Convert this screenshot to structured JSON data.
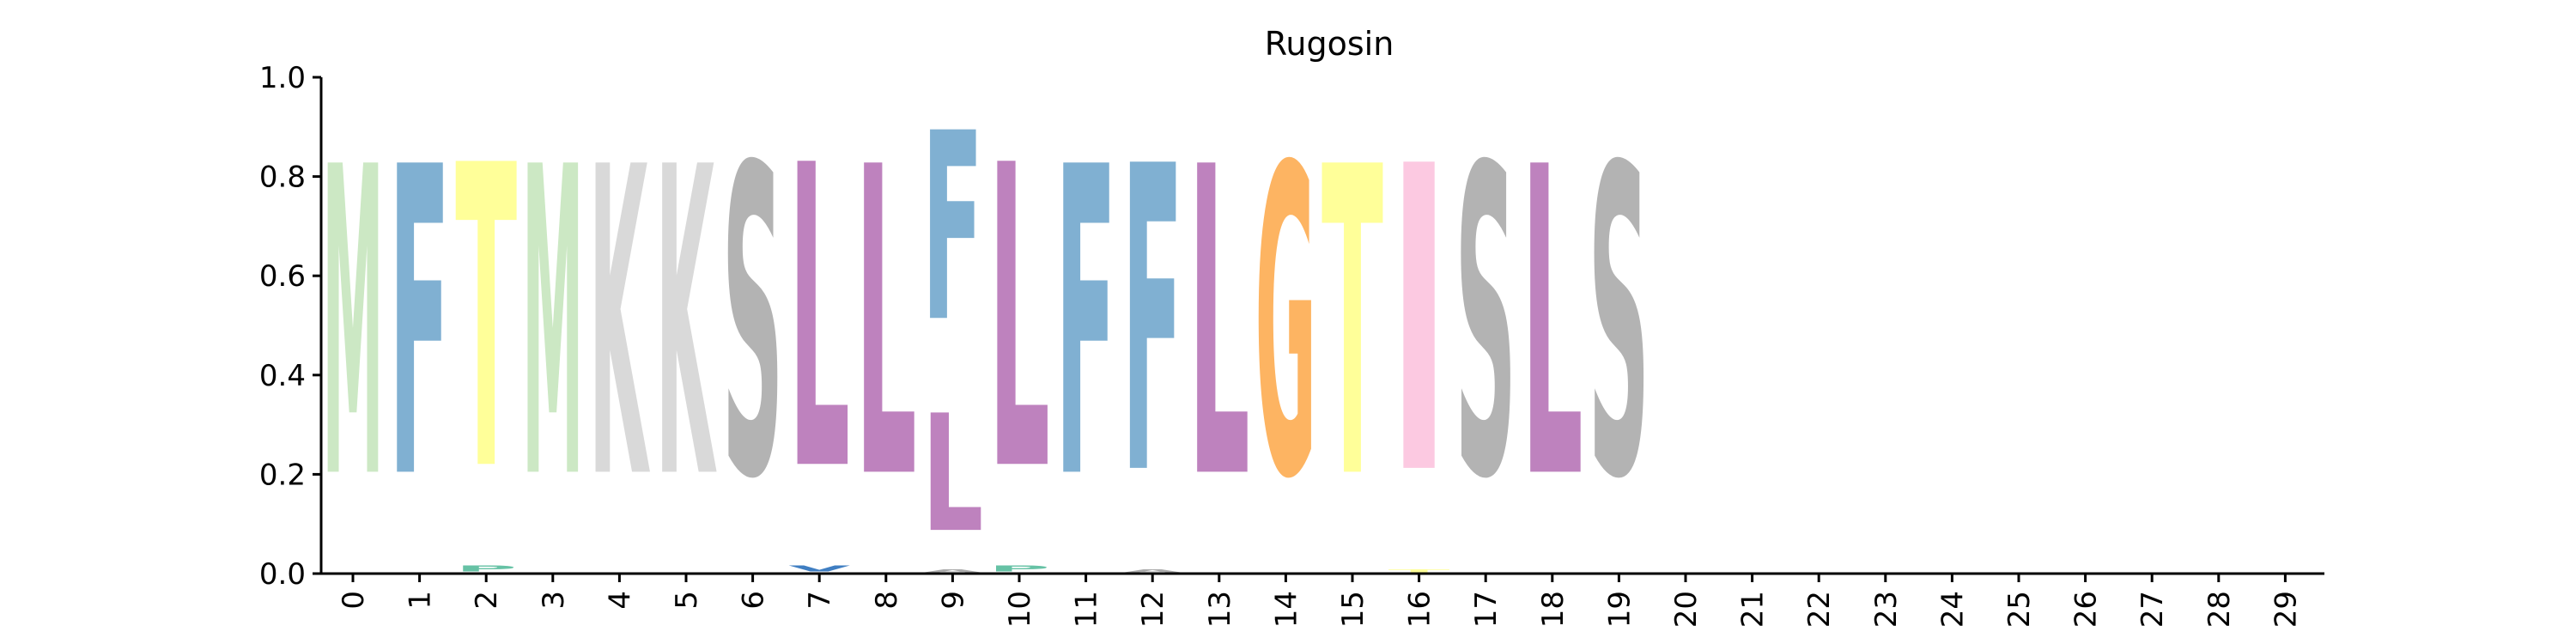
{
  "chart_data": {
    "type": "sequence-logo",
    "title": "Rugosin",
    "xlabel": "",
    "ylabel": "",
    "ylim": [
      0.0,
      1.0
    ],
    "yticks": [
      "0.0",
      "0.2",
      "0.4",
      "0.6",
      "0.8",
      "1.0"
    ],
    "xticks": [
      "0",
      "1",
      "2",
      "3",
      "4",
      "5",
      "6",
      "7",
      "8",
      "9",
      "10",
      "11",
      "12",
      "13",
      "14",
      "15",
      "16",
      "17",
      "18",
      "19",
      "20",
      "21",
      "22",
      "23",
      "24",
      "25",
      "26",
      "27",
      "28",
      "29"
    ],
    "grid": false,
    "legend": "none",
    "residue_colors": {
      "M": "#cce8c4",
      "F": "#80b0d2",
      "T": "#ffff99",
      "K": "#d9d9d9",
      "S": "#b3b3b3",
      "L": "#be82be",
      "G": "#fdb462",
      "I": "#fcc9e1",
      "P": "#66c2a5",
      "V": "#3f7ec2",
      "A": "#aaaaaa"
    },
    "positions": [
      {
        "x": 0,
        "letters": [
          {
            "char": "M",
            "value": 1.0
          }
        ]
      },
      {
        "x": 1,
        "letters": [
          {
            "char": "F",
            "value": 1.0
          }
        ]
      },
      {
        "x": 2,
        "letters": [
          {
            "char": "P",
            "value": 0.02
          },
          {
            "char": "T",
            "value": 0.98
          }
        ]
      },
      {
        "x": 3,
        "letters": [
          {
            "char": "M",
            "value": 1.0
          }
        ]
      },
      {
        "x": 4,
        "letters": [
          {
            "char": "K",
            "value": 1.0
          }
        ]
      },
      {
        "x": 5,
        "letters": [
          {
            "char": "K",
            "value": 1.0
          }
        ]
      },
      {
        "x": 6,
        "letters": [
          {
            "char": "S",
            "value": 1.0
          }
        ]
      },
      {
        "x": 7,
        "letters": [
          {
            "char": "V",
            "value": 0.02
          },
          {
            "char": "L",
            "value": 0.98
          }
        ]
      },
      {
        "x": 8,
        "letters": [
          {
            "char": "L",
            "value": 1.0
          }
        ]
      },
      {
        "x": 9,
        "letters": [
          {
            "char": "A",
            "value": 0.01
          },
          {
            "char": "L",
            "value": 0.38
          },
          {
            "char": "F",
            "value": 0.61
          }
        ]
      },
      {
        "x": 10,
        "letters": [
          {
            "char": "P",
            "value": 0.02
          },
          {
            "char": "L",
            "value": 0.98
          }
        ]
      },
      {
        "x": 11,
        "letters": [
          {
            "char": "F",
            "value": 1.0
          }
        ]
      },
      {
        "x": 12,
        "letters": [
          {
            "char": "A",
            "value": 0.01
          },
          {
            "char": "F",
            "value": 0.99
          }
        ]
      },
      {
        "x": 13,
        "letters": [
          {
            "char": "L",
            "value": 1.0
          }
        ]
      },
      {
        "x": 14,
        "letters": [
          {
            "char": "G",
            "value": 1.0
          }
        ]
      },
      {
        "x": 15,
        "letters": [
          {
            "char": "T",
            "value": 1.0
          }
        ]
      },
      {
        "x": 16,
        "letters": [
          {
            "char": "T",
            "value": 0.01
          },
          {
            "char": "I",
            "value": 0.99
          }
        ]
      },
      {
        "x": 17,
        "letters": [
          {
            "char": "S",
            "value": 1.0
          }
        ]
      },
      {
        "x": 18,
        "letters": [
          {
            "char": "L",
            "value": 1.0
          }
        ]
      },
      {
        "x": 19,
        "letters": [
          {
            "char": "S",
            "value": 1.0
          }
        ]
      }
    ]
  }
}
